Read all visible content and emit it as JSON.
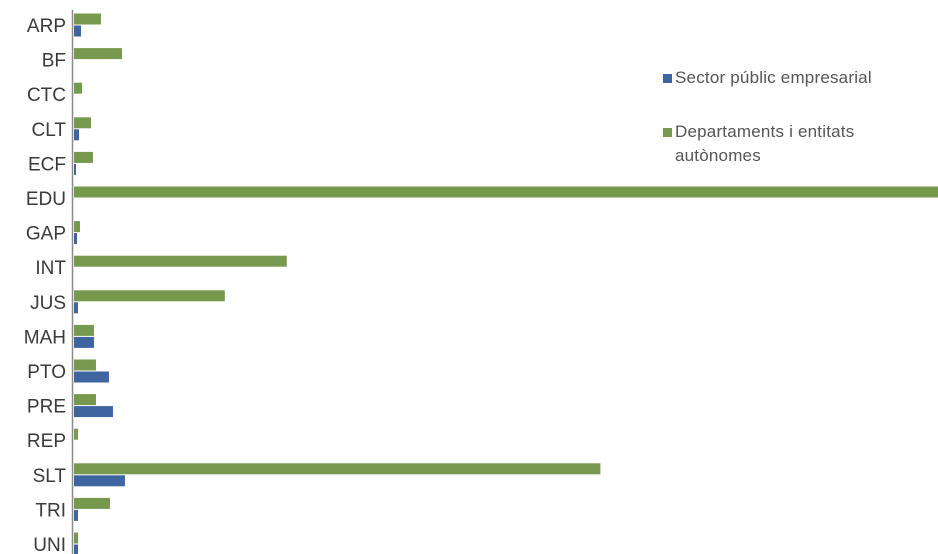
{
  "chart_data": {
    "type": "bar",
    "orientation": "horizontal",
    "categories": [
      "ARP",
      "BF",
      "CTC",
      "CLT",
      "ECF",
      "EDU",
      "GAP",
      "INT",
      "JUS",
      "MAH",
      "PTO",
      "PRE",
      "REP",
      "SLT",
      "TRI",
      "UNI"
    ],
    "series": [
      {
        "name": "Departaments i entitats autònomes",
        "color": "#77994d",
        "values": [
          27,
          48,
          8,
          17,
          19,
          865,
          6,
          213,
          151,
          20,
          22,
          22,
          4,
          527,
          36,
          4
        ]
      },
      {
        "name": "Sector públic empresarial",
        "color": "#3e65a0",
        "values": [
          7,
          0,
          0,
          5,
          2,
          0,
          3,
          0,
          4,
          20,
          35,
          39,
          0,
          51,
          4,
          4
        ]
      }
    ],
    "xlim": [
      0,
      865
    ],
    "grid": false,
    "legend_position": "right"
  }
}
